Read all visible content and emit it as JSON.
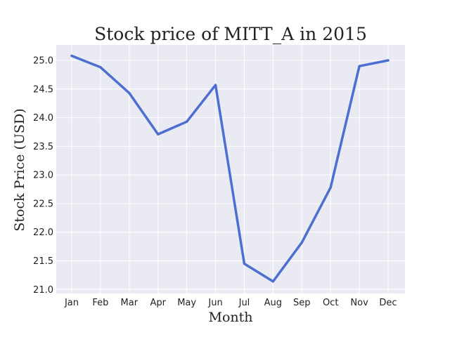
{
  "chart_data": {
    "type": "line",
    "title": "Stock price of MITT_A in 2015",
    "xlabel": "Month",
    "ylabel": "Stock Price (USD)",
    "categories": [
      "Jan",
      "Feb",
      "Mar",
      "Apr",
      "May",
      "Jun",
      "Jul",
      "Aug",
      "Sep",
      "Oct",
      "Nov",
      "Dec"
    ],
    "series": [
      {
        "values": [
          25.08,
          24.88,
          24.43,
          23.71,
          23.93,
          24.57,
          21.45,
          21.14,
          21.82,
          22.78,
          24.9,
          25.0
        ]
      }
    ],
    "ylim": [
      20.93,
      25.27
    ],
    "yticks": [
      "21.0",
      "21.5",
      "22.0",
      "22.5",
      "23.0",
      "23.5",
      "24.0",
      "24.5",
      "25.0"
    ],
    "grid": true,
    "legend": "none",
    "colors": {
      "plot_background": "#eaeaf2",
      "grid": "#ffffff",
      "line": "#4c6fd1",
      "text": "#222222"
    }
  }
}
